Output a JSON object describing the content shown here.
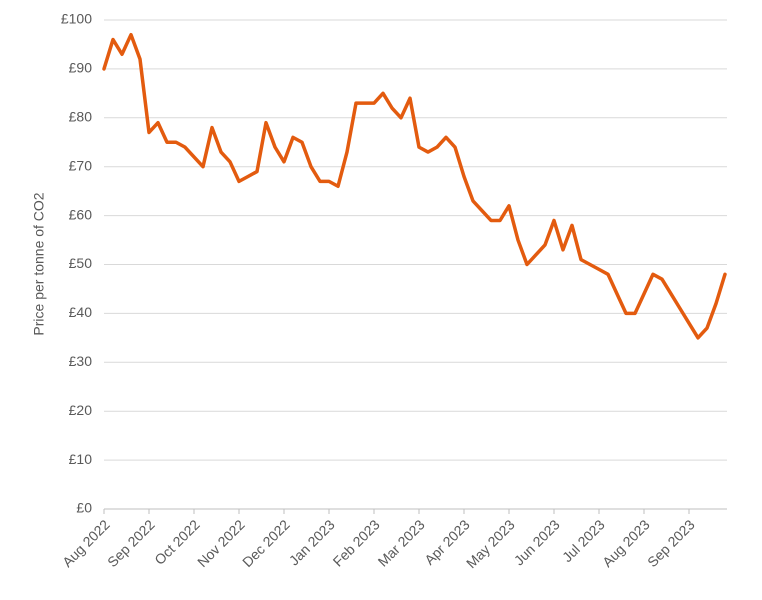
{
  "chart_data": {
    "type": "line",
    "y_label": "Price per tonne of CO2",
    "categories": [
      "Aug 2022",
      null,
      null,
      null,
      null,
      "Sep 2022",
      null,
      null,
      null,
      null,
      "Oct 2022",
      null,
      null,
      null,
      null,
      "Nov 2022",
      null,
      null,
      null,
      null,
      "Dec 2022",
      null,
      null,
      null,
      null,
      "Jan 2023",
      null,
      null,
      null,
      null,
      "Feb 2023",
      null,
      null,
      null,
      null,
      "Mar 2023",
      null,
      null,
      null,
      null,
      "Apr 2023",
      null,
      null,
      null,
      null,
      "May 2023",
      null,
      null,
      null,
      null,
      "Jun 2023",
      null,
      null,
      null,
      null,
      "Jul 2023",
      null,
      null,
      null,
      null,
      "Aug 2023",
      null,
      null,
      null,
      null,
      "Sep 2023",
      null,
      null,
      null,
      null
    ],
    "values": [
      90,
      96,
      93,
      97,
      92,
      77,
      79,
      75,
      75,
      74,
      72,
      70,
      78,
      73,
      71,
      67,
      68,
      69,
      79,
      74,
      71,
      76,
      75,
      70,
      67,
      67,
      66,
      73,
      83,
      83,
      83,
      85,
      82,
      80,
      84,
      74,
      73,
      74,
      76,
      74,
      68,
      63,
      61,
      59,
      59,
      62,
      55,
      50,
      52,
      54,
      59,
      53,
      58,
      51,
      50,
      49,
      48,
      44,
      40,
      40,
      44,
      48,
      47,
      44,
      41,
      38,
      35,
      37,
      42,
      48
    ],
    "color": "#e35b0f",
    "ylim": [
      0,
      100
    ],
    "yticks": [
      {
        "value": 0,
        "label": "£0"
      },
      {
        "value": 10,
        "label": "£10"
      },
      {
        "value": 20,
        "label": "£20"
      },
      {
        "value": 30,
        "label": "£30"
      },
      {
        "value": 40,
        "label": "£40"
      },
      {
        "value": 50,
        "label": "£50"
      },
      {
        "value": 60,
        "label": "£60"
      },
      {
        "value": 70,
        "label": "£70"
      },
      {
        "value": 80,
        "label": "£80"
      },
      {
        "value": 90,
        "label": "£90"
      },
      {
        "value": 100,
        "label": "£100"
      }
    ],
    "grid": true
  }
}
